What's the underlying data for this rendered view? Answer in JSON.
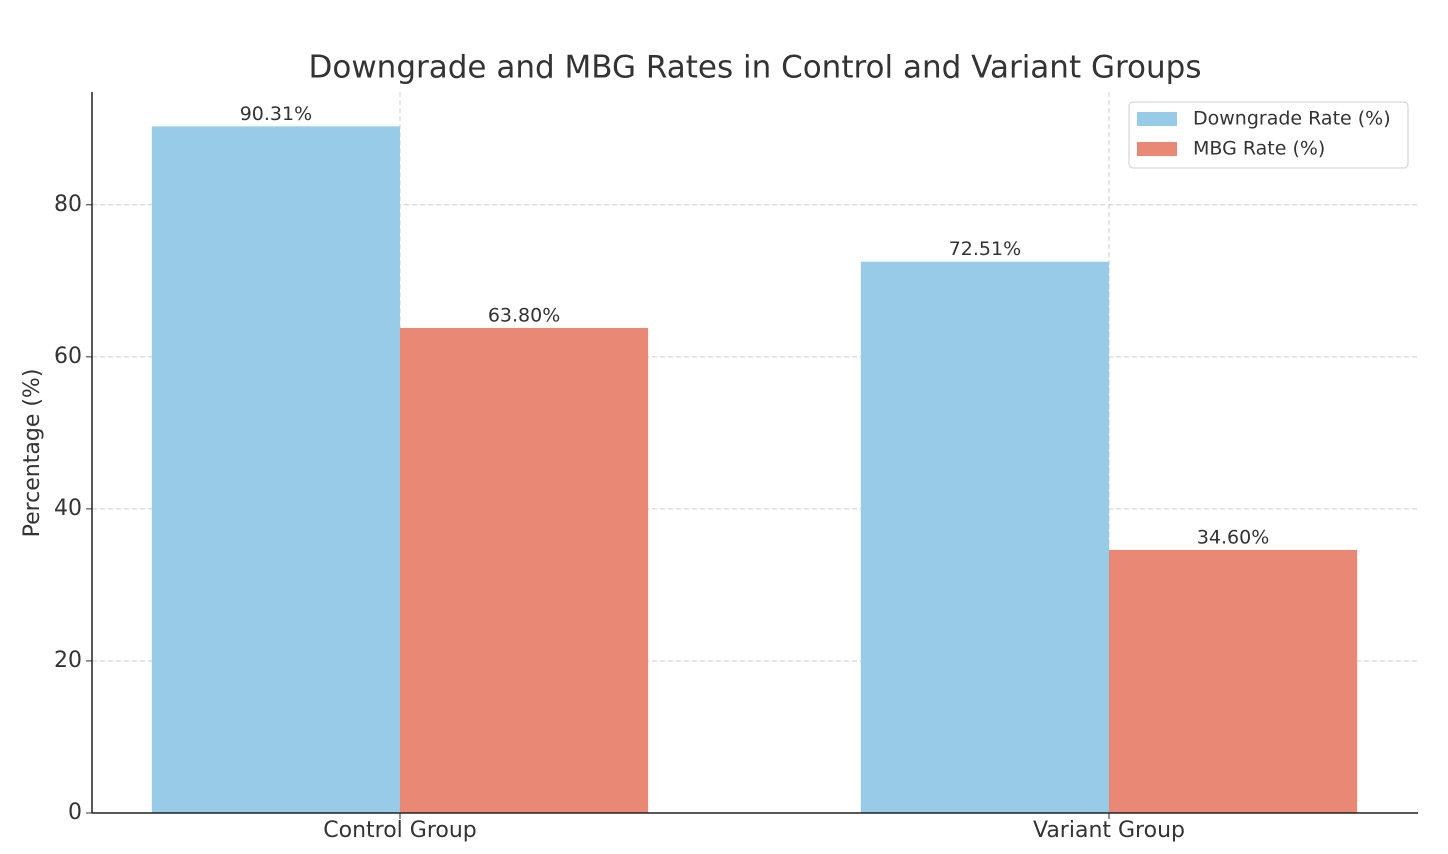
{
  "chart_data": {
    "type": "bar",
    "title": "Downgrade and MBG Rates in Control and Variant Groups",
    "y_label": "Percentage (%)",
    "categories": [
      "Control Group",
      "Variant Group"
    ],
    "series": [
      {
        "name": "Downgrade Rate (%)",
        "color": "#97cbe7",
        "values": [
          90.31,
          72.51
        ],
        "value_labels": [
          "90.31%",
          "72.51%"
        ]
      },
      {
        "name": "MBG Rate (%)",
        "color": "#ea8876",
        "values": [
          63.8,
          34.6
        ],
        "value_labels": [
          "63.80%",
          "34.60%"
        ]
      }
    ],
    "ylim": [
      0,
      94.83
    ],
    "yticks": [
      0,
      20,
      40,
      60,
      80
    ],
    "grid": true,
    "legend": "upper right"
  }
}
